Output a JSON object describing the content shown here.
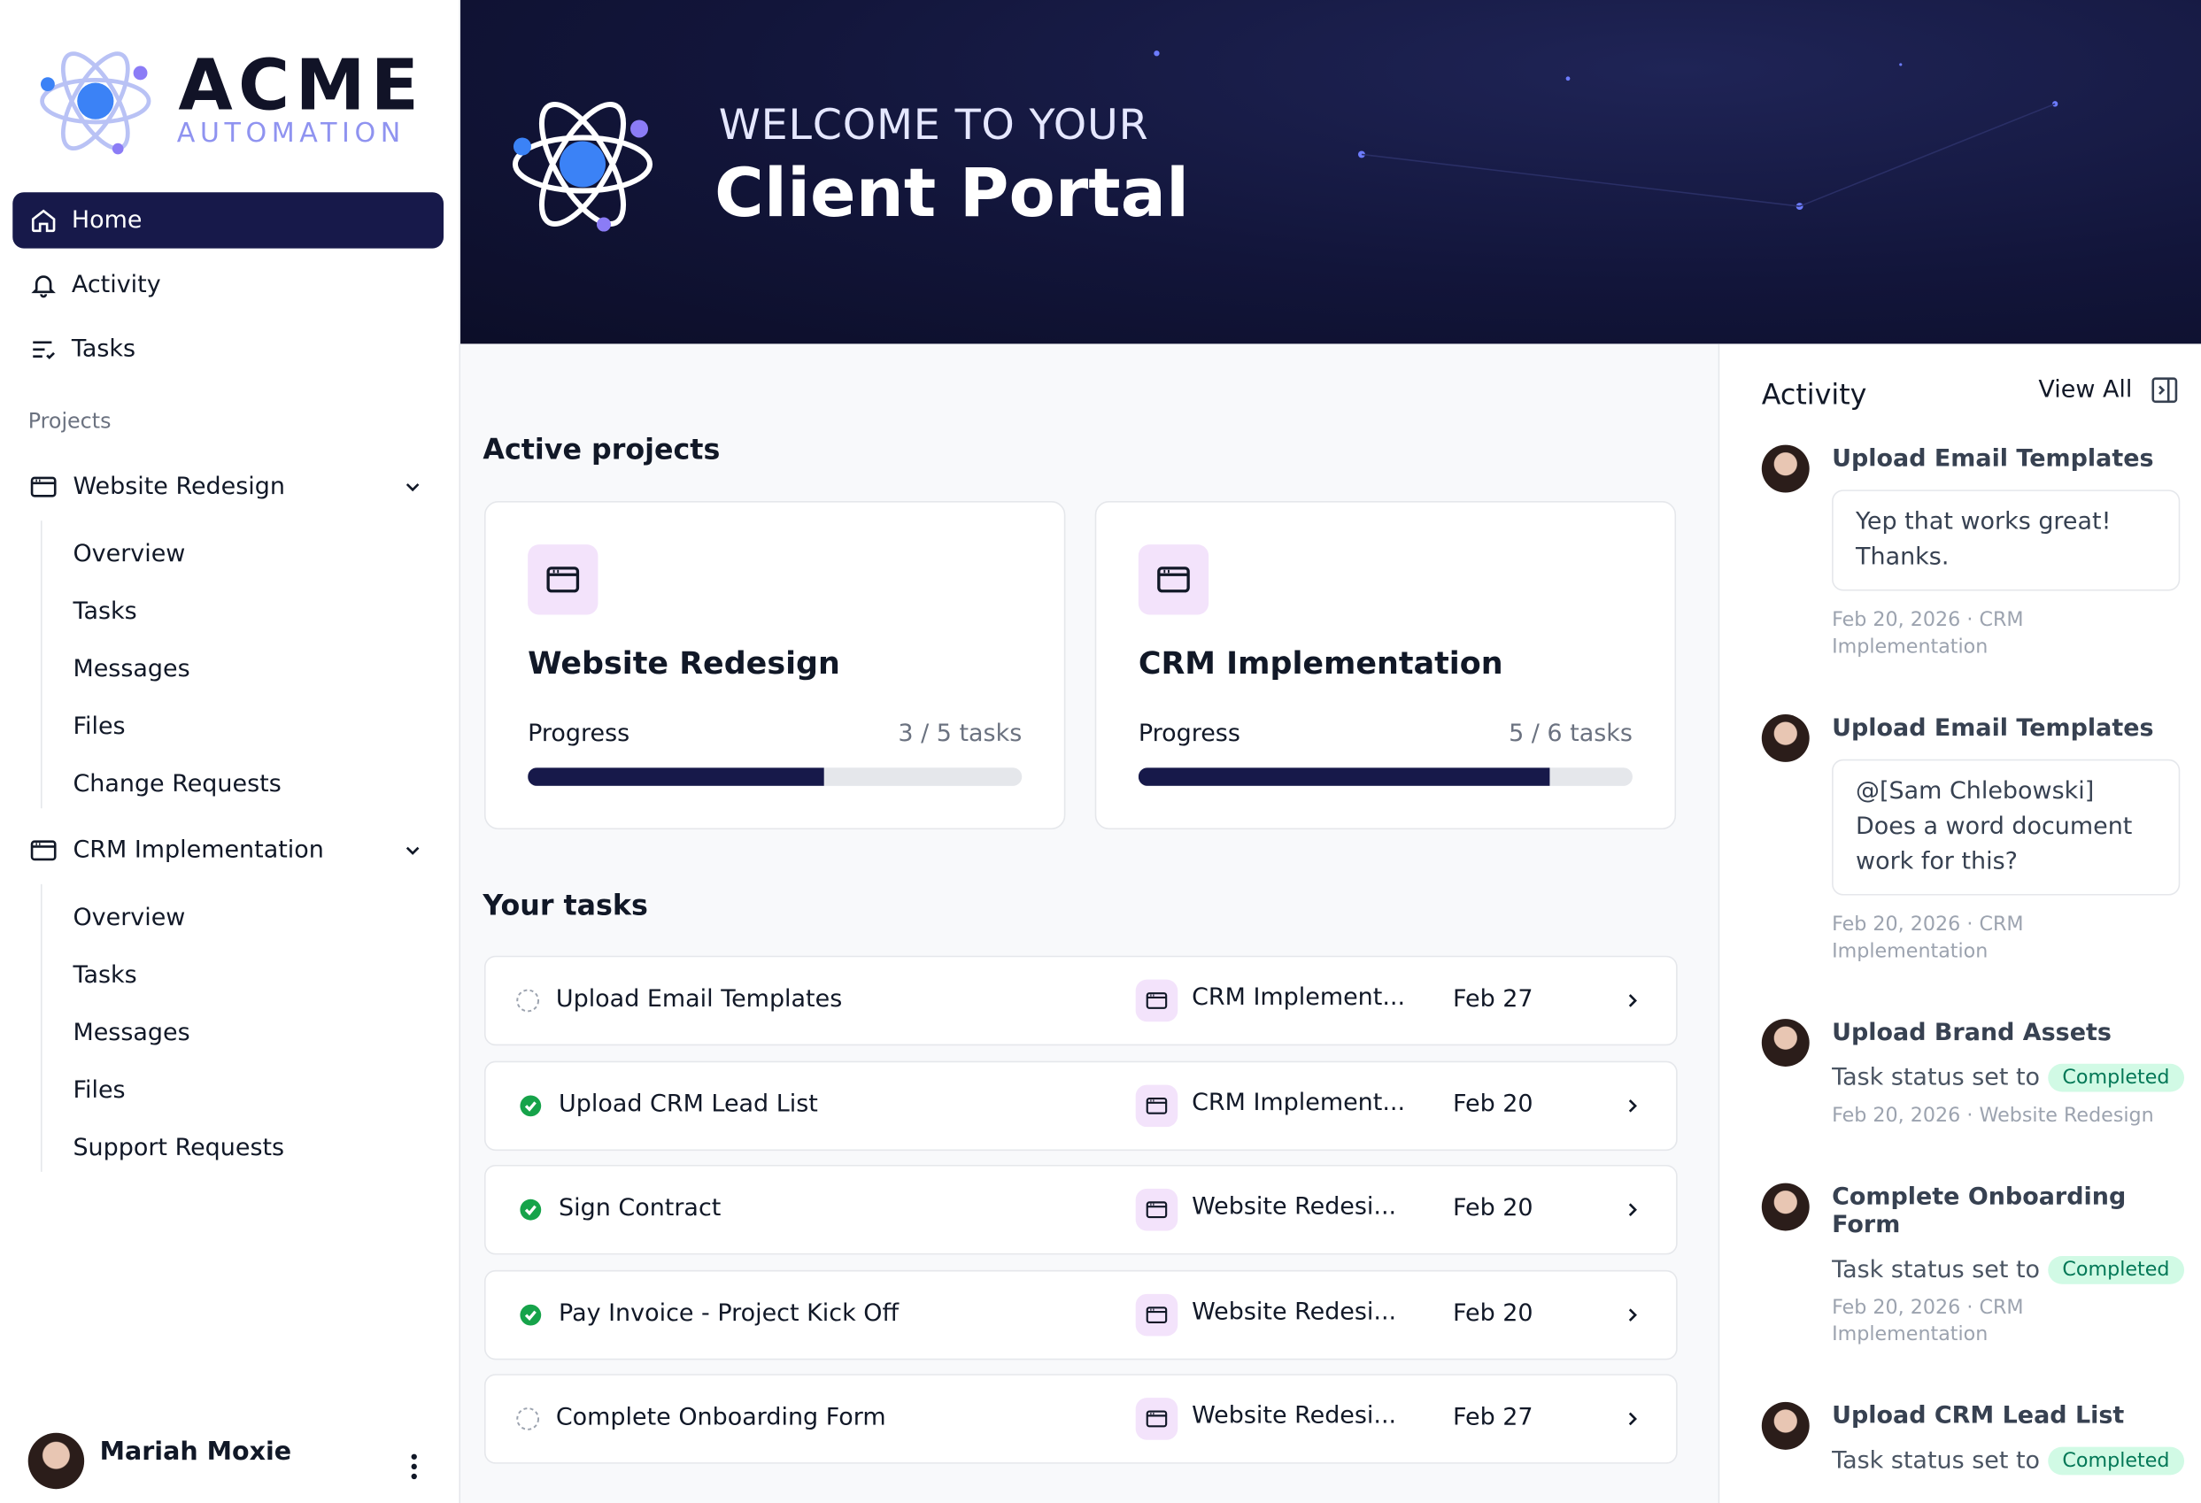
{
  "brand": {
    "name": "ACME",
    "tagline": "AUTOMATION"
  },
  "nav": [
    "Home",
    "Activity",
    "Tasks"
  ],
  "projects_label": "Projects",
  "projects": [
    {
      "name": "Website Redesign",
      "items": [
        "Overview",
        "Tasks",
        "Messages",
        "Files",
        "Change Requests"
      ]
    },
    {
      "name": "CRM Implementation",
      "items": [
        "Overview",
        "Tasks",
        "Messages",
        "Files",
        "Support Requests"
      ]
    }
  ],
  "user": {
    "name": "Mariah Moxie"
  },
  "hero": {
    "kicker": "WELCOME TO YOUR",
    "title": "Client Portal"
  },
  "active_projects": {
    "title": "Active projects",
    "cards": [
      {
        "name": "Website Redesign",
        "progress_label": "Progress",
        "tasks_label": "3 / 5 tasks",
        "done": 3,
        "total": 5
      },
      {
        "name": "CRM Implementation",
        "progress_label": "Progress",
        "tasks_label": "5 / 6 tasks",
        "done": 5,
        "total": 6
      }
    ]
  },
  "tasks": {
    "title": "Your tasks",
    "rows": [
      {
        "name": "Upload Email Templates",
        "status": "open",
        "project": "CRM Implement...",
        "due": "Feb 27"
      },
      {
        "name": "Upload CRM Lead List",
        "status": "done",
        "project": "CRM Implement...",
        "due": "Feb 20"
      },
      {
        "name": "Sign Contract",
        "status": "done",
        "project": "Website Redesi...",
        "due": "Feb 20"
      },
      {
        "name": "Pay Invoice - Project Kick Off",
        "status": "done",
        "project": "Website Redesi...",
        "due": "Feb 20"
      },
      {
        "name": "Complete Onboarding Form",
        "status": "open",
        "project": "Website Redesi...",
        "due": "Feb 27"
      }
    ]
  },
  "activity": {
    "title": "Activity",
    "view_all": "View All",
    "items": [
      {
        "title": "Upload Email Templates",
        "comment": "Yep that works great! Thanks.",
        "meta": "Feb 20, 2026 · CRM Implementation"
      },
      {
        "title": "Upload Email Templates",
        "comment": "@[Sam Chlebowski] Does a word document work for this?",
        "meta": "Feb 20, 2026 · CRM Implementation"
      },
      {
        "title": "Upload Brand Assets",
        "status_text": "Task status set to",
        "badge": "Completed",
        "meta": "Feb 20, 2026 · Website Redesign"
      },
      {
        "title": "Complete Onboarding Form",
        "status_text": "Task status set to",
        "badge": "Completed",
        "meta": "Feb 20, 2026 · CRM Implementation"
      },
      {
        "title": "Upload CRM Lead List",
        "status_text": "Task status set to",
        "badge": "Completed"
      }
    ]
  }
}
